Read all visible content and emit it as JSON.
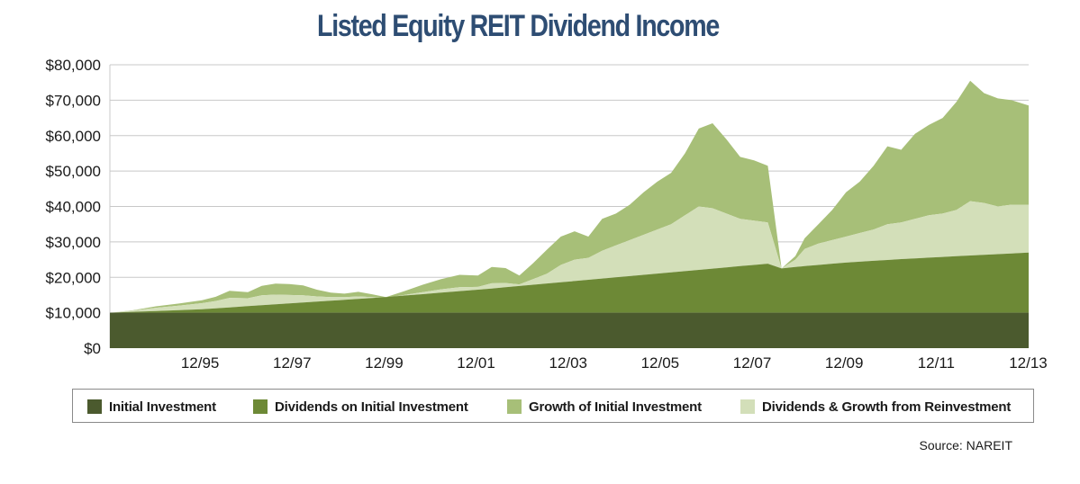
{
  "chart_data": {
    "type": "area",
    "title": "Listed Equity REIT Dividend Income",
    "source": "Source: NAREIT",
    "xlabel": "",
    "ylabel": "",
    "ylim": [
      0,
      80000
    ],
    "xlim": [
      1994.0,
      2013.97
    ],
    "y_ticks": [
      "$0",
      "$10,000",
      "$20,000",
      "$30,000",
      "$40,000",
      "$50,000",
      "$60,000",
      "$70,000",
      "$80,000"
    ],
    "x_ticks": [
      "12/95",
      "12/97",
      "12/99",
      "12/01",
      "12/03",
      "12/05",
      "12/07",
      "12/09",
      "12/11",
      "12/13"
    ],
    "x_tick_values": [
      1995.96,
      1997.96,
      1999.96,
      2001.96,
      2003.96,
      2005.96,
      2007.96,
      2009.96,
      2011.96,
      2013.96
    ],
    "grid": true,
    "stacked": true,
    "legend_position": "bottom",
    "colors": {
      "initial": "#4b5a2e",
      "dividends": "#6d8936",
      "growth": "#a7bf78",
      "reinvest": "#d3dfb9",
      "grid": "#c8c8c8",
      "title": "#2e4d73"
    },
    "series": [
      {
        "name": "Initial Investment",
        "key": "initial"
      },
      {
        "name": "Dividends on Initial Investment",
        "key": "dividends"
      },
      {
        "name": "Growth of Initial Investment",
        "key": "growth"
      },
      {
        "name": "Dividends & Growth from Reinvestment",
        "key": "reinvest"
      }
    ],
    "x": [
      1994.0,
      1994.5,
      1995.0,
      1995.5,
      1996.0,
      1996.3,
      1996.6,
      1997.0,
      1997.3,
      1997.6,
      1997.9,
      1998.2,
      1998.5,
      1998.8,
      1999.1,
      1999.4,
      1999.7,
      2000.0,
      2000.4,
      2000.8,
      2001.2,
      2001.6,
      2002.0,
      2002.3,
      2002.6,
      2002.9,
      2003.2,
      2003.5,
      2003.8,
      2004.1,
      2004.4,
      2004.7,
      2005.0,
      2005.3,
      2005.6,
      2005.9,
      2006.2,
      2006.5,
      2006.8,
      2007.1,
      2007.4,
      2007.7,
      2008.0,
      2008.3,
      2008.6,
      2008.9,
      2009.1,
      2009.4,
      2009.7,
      2010.0,
      2010.3,
      2010.6,
      2010.9,
      2011.2,
      2011.5,
      2011.8,
      2012.1,
      2012.4,
      2012.7,
      2013.0,
      2013.3,
      2013.6,
      2013.97
    ],
    "totals": [
      10000,
      10700,
      11800,
      12600,
      13500,
      14500,
      16200,
      15800,
      17600,
      18200,
      18100,
      17700,
      16500,
      15700,
      15400,
      15900,
      15200,
      14400,
      16100,
      17900,
      19500,
      20700,
      20500,
      22900,
      22600,
      20500,
      24000,
      27800,
      31500,
      33000,
      31500,
      36500,
      38000,
      40500,
      44000,
      47000,
      49500,
      55000,
      62000,
      63500,
      59000,
      54000,
      53000,
      51500,
      22500,
      26000,
      31000,
      35000,
      39000,
      44000,
      47000,
      51500,
      57000,
      56000,
      60500,
      63000,
      65000,
      69500,
      75500,
      72000,
      70500,
      70000,
      68500
    ],
    "values_reinvest_top": [
      10000,
      10600,
      11400,
      12000,
      12700,
      13300,
      14200,
      14100,
      14900,
      15100,
      15000,
      14900,
      14600,
      14400,
      14400,
      14600,
      14400,
      14200,
      15000,
      15800,
      16600,
      17200,
      17300,
      18300,
      18400,
      18000,
      19500,
      21000,
      23500,
      25000,
      25500,
      27500,
      29000,
      30500,
      32000,
      33500,
      35000,
      37500,
      40000,
      39500,
      38000,
      36500,
      36000,
      35500,
      22500,
      25000,
      28000,
      29500,
      30500,
      31500,
      32500,
      33500,
      35000,
      35500,
      36500,
      37500,
      38000,
      39000,
      41500,
      41000,
      40000,
      40500,
      40500
    ],
    "values_dividends_top": [
      10000,
      10250,
      10500,
      10750,
      11000,
      11250,
      11500,
      11850,
      12150,
      12400,
      12650,
      12900,
      13150,
      13400,
      13650,
      13900,
      14150,
      14400,
      14850,
      15250,
      15700,
      16100,
      16500,
      16850,
      17200,
      17550,
      17900,
      18250,
      18600,
      18950,
      19300,
      19650,
      20000,
      20350,
      20700,
      21050,
      21400,
      21750,
      22100,
      22450,
      22800,
      23150,
      23500,
      23850,
      22500,
      22900,
      23150,
      23500,
      23850,
      24150,
      24400,
      24650,
      24900,
      25150,
      25350,
      25550,
      25750,
      25950,
      26150,
      26350,
      26550,
      26750,
      27000
    ],
    "values_initial": [
      10000,
      10000,
      10000,
      10000,
      10000,
      10000,
      10000,
      10000,
      10000,
      10000,
      10000,
      10000,
      10000,
      10000,
      10000,
      10000,
      10000,
      10000,
      10000,
      10000,
      10000,
      10000,
      10000,
      10000,
      10000,
      10000,
      10000,
      10000,
      10000,
      10000,
      10000,
      10000,
      10000,
      10000,
      10000,
      10000,
      10000,
      10000,
      10000,
      10000,
      10000,
      10000,
      10000,
      10000,
      10000,
      10000,
      10000,
      10000,
      10000,
      10000,
      10000,
      10000,
      10000,
      10000,
      10000,
      10000,
      10000,
      10000,
      10000,
      10000,
      10000,
      10000,
      10000
    ]
  }
}
